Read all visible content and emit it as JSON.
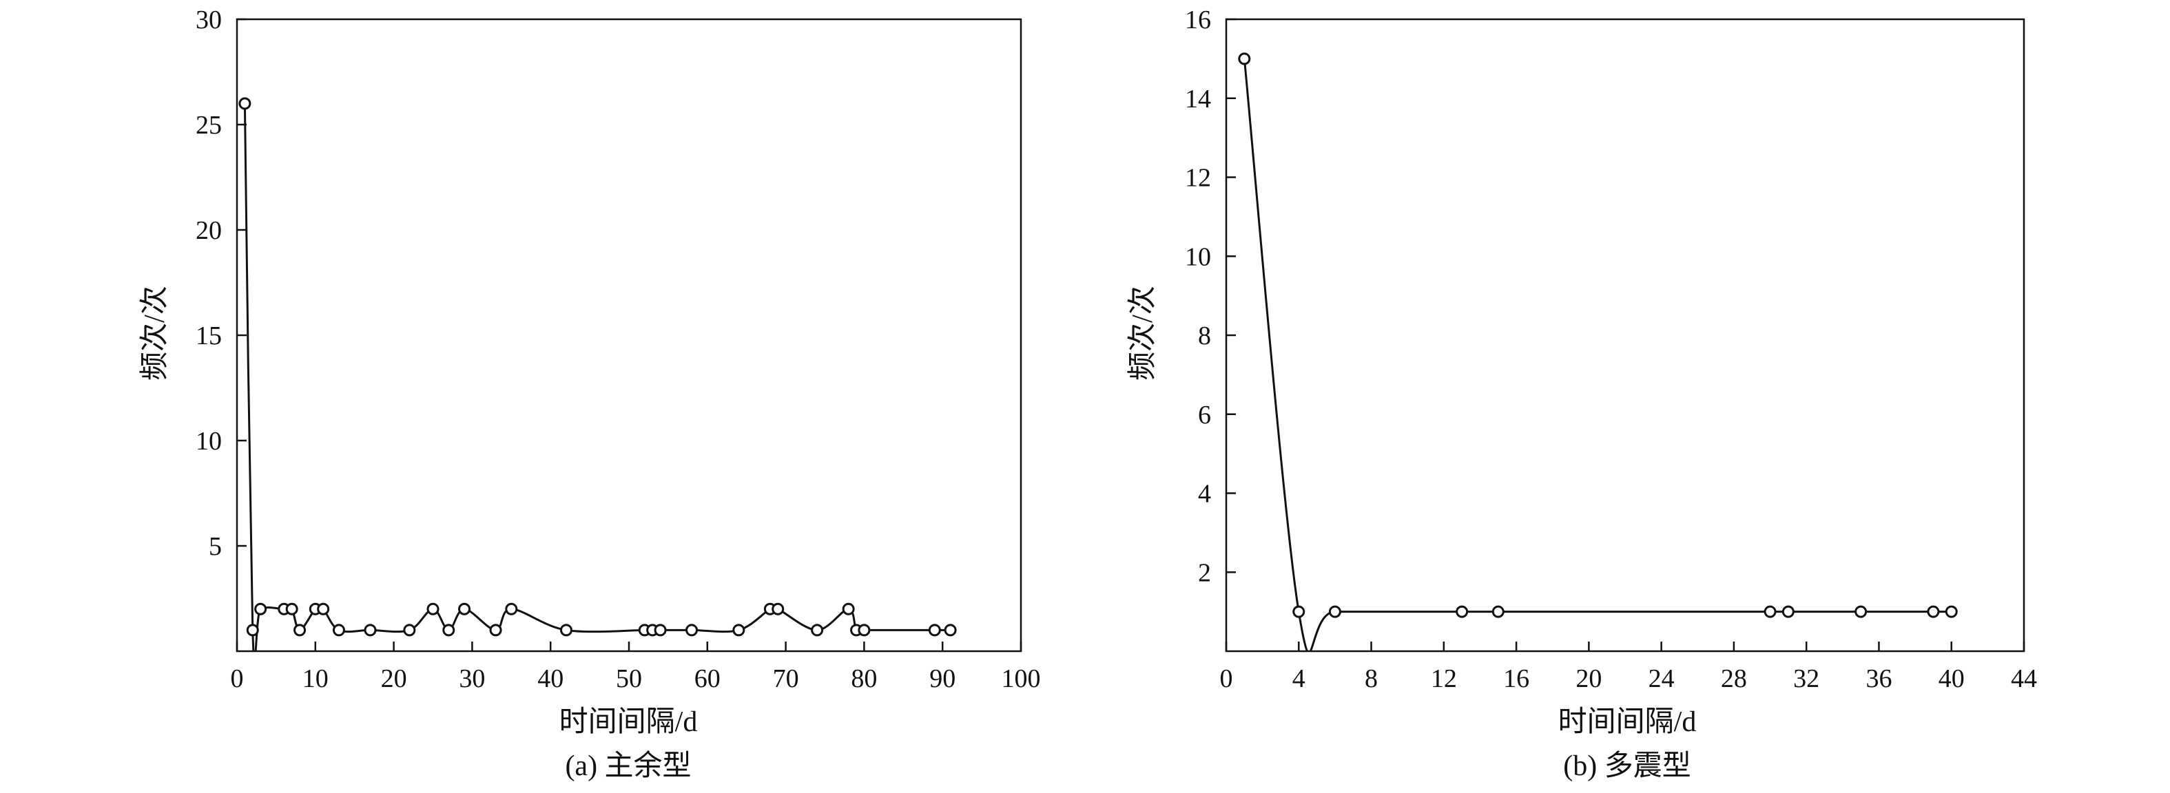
{
  "chart_data": [
    {
      "type": "line",
      "caption": "(a) 主余型",
      "xlabel": "时间间隔/d",
      "ylabel": "频次/次",
      "xlim": [
        0,
        100
      ],
      "ylim": [
        0,
        30
      ],
      "xticks": [
        0,
        10,
        20,
        30,
        40,
        50,
        60,
        70,
        80,
        90,
        100
      ],
      "yticks": [
        5,
        10,
        15,
        20,
        25,
        30
      ],
      "x_tick_labels": [
        "0",
        "10",
        "20",
        "30",
        "40",
        "50",
        "60",
        "70",
        "80",
        "90",
        "100"
      ],
      "y_tick_labels": [
        "5",
        "10",
        "15",
        "20",
        "25",
        "30"
      ],
      "grid": false,
      "series": [
        {
          "x": [
            1,
            2,
            3,
            6,
            7,
            8,
            10,
            11,
            13,
            17,
            22,
            25,
            27,
            29,
            33,
            35,
            42,
            52,
            53,
            54,
            58,
            64,
            68,
            69,
            74,
            78,
            79,
            80,
            89,
            91
          ],
          "y": [
            26,
            1,
            2,
            2,
            2,
            1,
            2,
            2,
            1,
            1,
            1,
            2,
            1,
            2,
            1,
            2,
            1,
            1,
            1,
            1,
            1,
            1,
            2,
            2,
            1,
            2,
            1,
            1,
            1,
            1
          ]
        }
      ]
    },
    {
      "type": "line",
      "caption": "(b) 多震型",
      "xlabel": "时间间隔/d",
      "ylabel": "频次/次",
      "xlim": [
        0,
        44
      ],
      "ylim": [
        0,
        16
      ],
      "xticks": [
        0,
        4,
        8,
        12,
        16,
        20,
        24,
        28,
        32,
        36,
        40,
        44
      ],
      "yticks": [
        2,
        4,
        6,
        8,
        10,
        12,
        14,
        16
      ],
      "x_tick_labels": [
        "0",
        "4",
        "8",
        "12",
        "16",
        "20",
        "24",
        "28",
        "32",
        "36",
        "40",
        "44"
      ],
      "y_tick_labels": [
        "2",
        "4",
        "6",
        "8",
        "10",
        "12",
        "14",
        "16"
      ],
      "grid": false,
      "series": [
        {
          "x": [
            1,
            4,
            6,
            13,
            15,
            30,
            31,
            35,
            39,
            40
          ],
          "y": [
            15,
            1,
            1,
            1,
            1,
            1,
            1,
            1,
            1,
            1
          ]
        }
      ]
    }
  ]
}
